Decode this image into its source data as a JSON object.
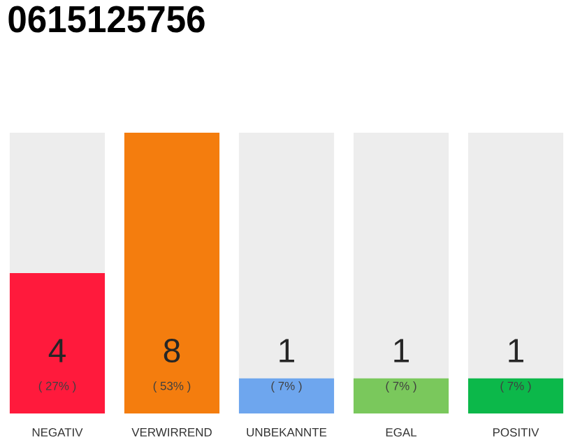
{
  "chart_data": {
    "type": "bar",
    "title": "0615125756",
    "categories": [
      "NEGATIV",
      "VERWIRREND",
      "UNBEKANNTE",
      "EGAL",
      "POSITIV"
    ],
    "values": [
      4,
      8,
      1,
      1,
      1
    ],
    "colors": [
      "#ff1a3c",
      "#f47d0e",
      "#6ea6ee",
      "#7ac85c",
      "#0cb84a"
    ],
    "ylim": [
      0,
      8
    ],
    "data_labels": true,
    "annotations": [
      "( 27% )",
      "( 53% )",
      "( 7% )",
      "( 7% )",
      "( 7% )"
    ]
  }
}
